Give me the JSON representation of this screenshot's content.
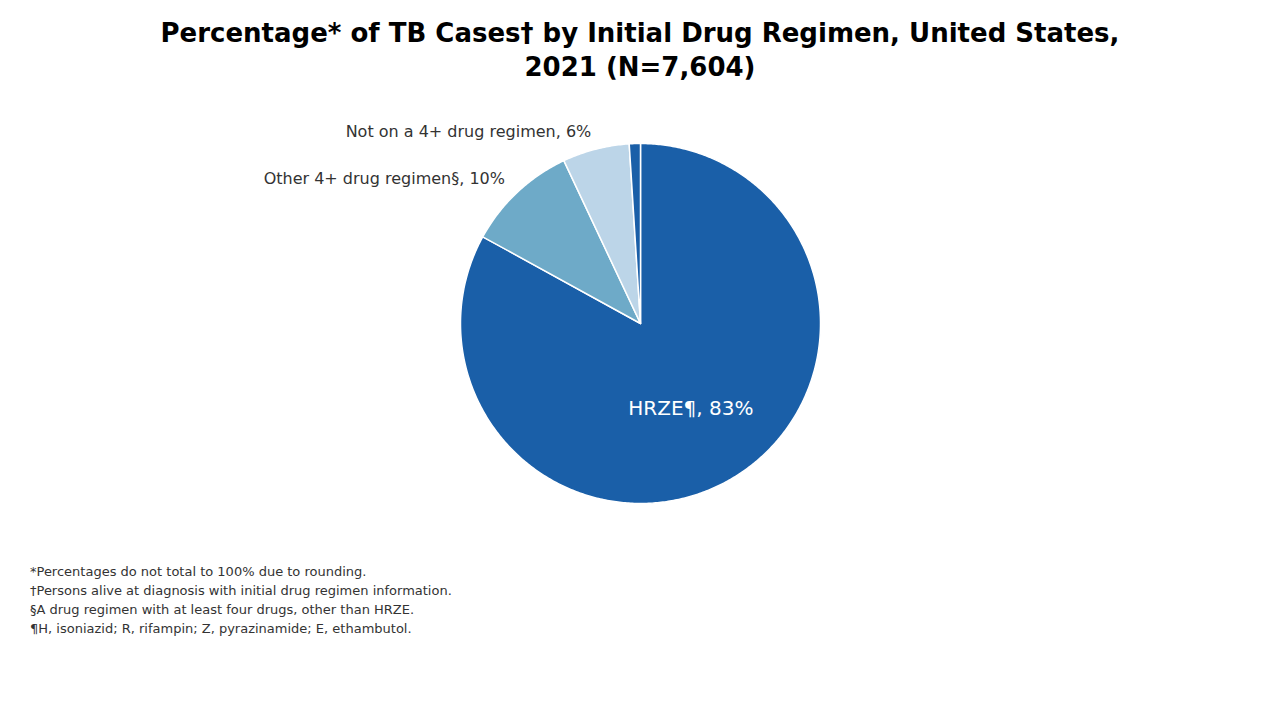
{
  "chart_data": {
    "type": "pie",
    "title": "Percentage* of TB Cases† by Initial Drug Regimen, United States,",
    "subtitle": "2021 (N=7,604)",
    "values": [
      83,
      10,
      6,
      1
    ],
    "colors": [
      "#1a5fa8",
      "#6eaac8",
      "#bcd5e8",
      "#1a5fa8"
    ],
    "value_labels": [
      "HRZE¶, 83%",
      "Other 4+ drug regimen§, 10%",
      "Not on a 4+ drug regimen, 6%",
      null
    ],
    "data_labels": true,
    "annotations": [
      "*Percentages do not total to 100% due to rounding.",
      "†Persons alive at diagnosis with initial drug regimen information.",
      "§A drug regimen with at least four drugs, other than HRZE.",
      "¶H, isoniazid; R, rifampin; Z, pyrazinamide; E, ethambutol."
    ]
  }
}
